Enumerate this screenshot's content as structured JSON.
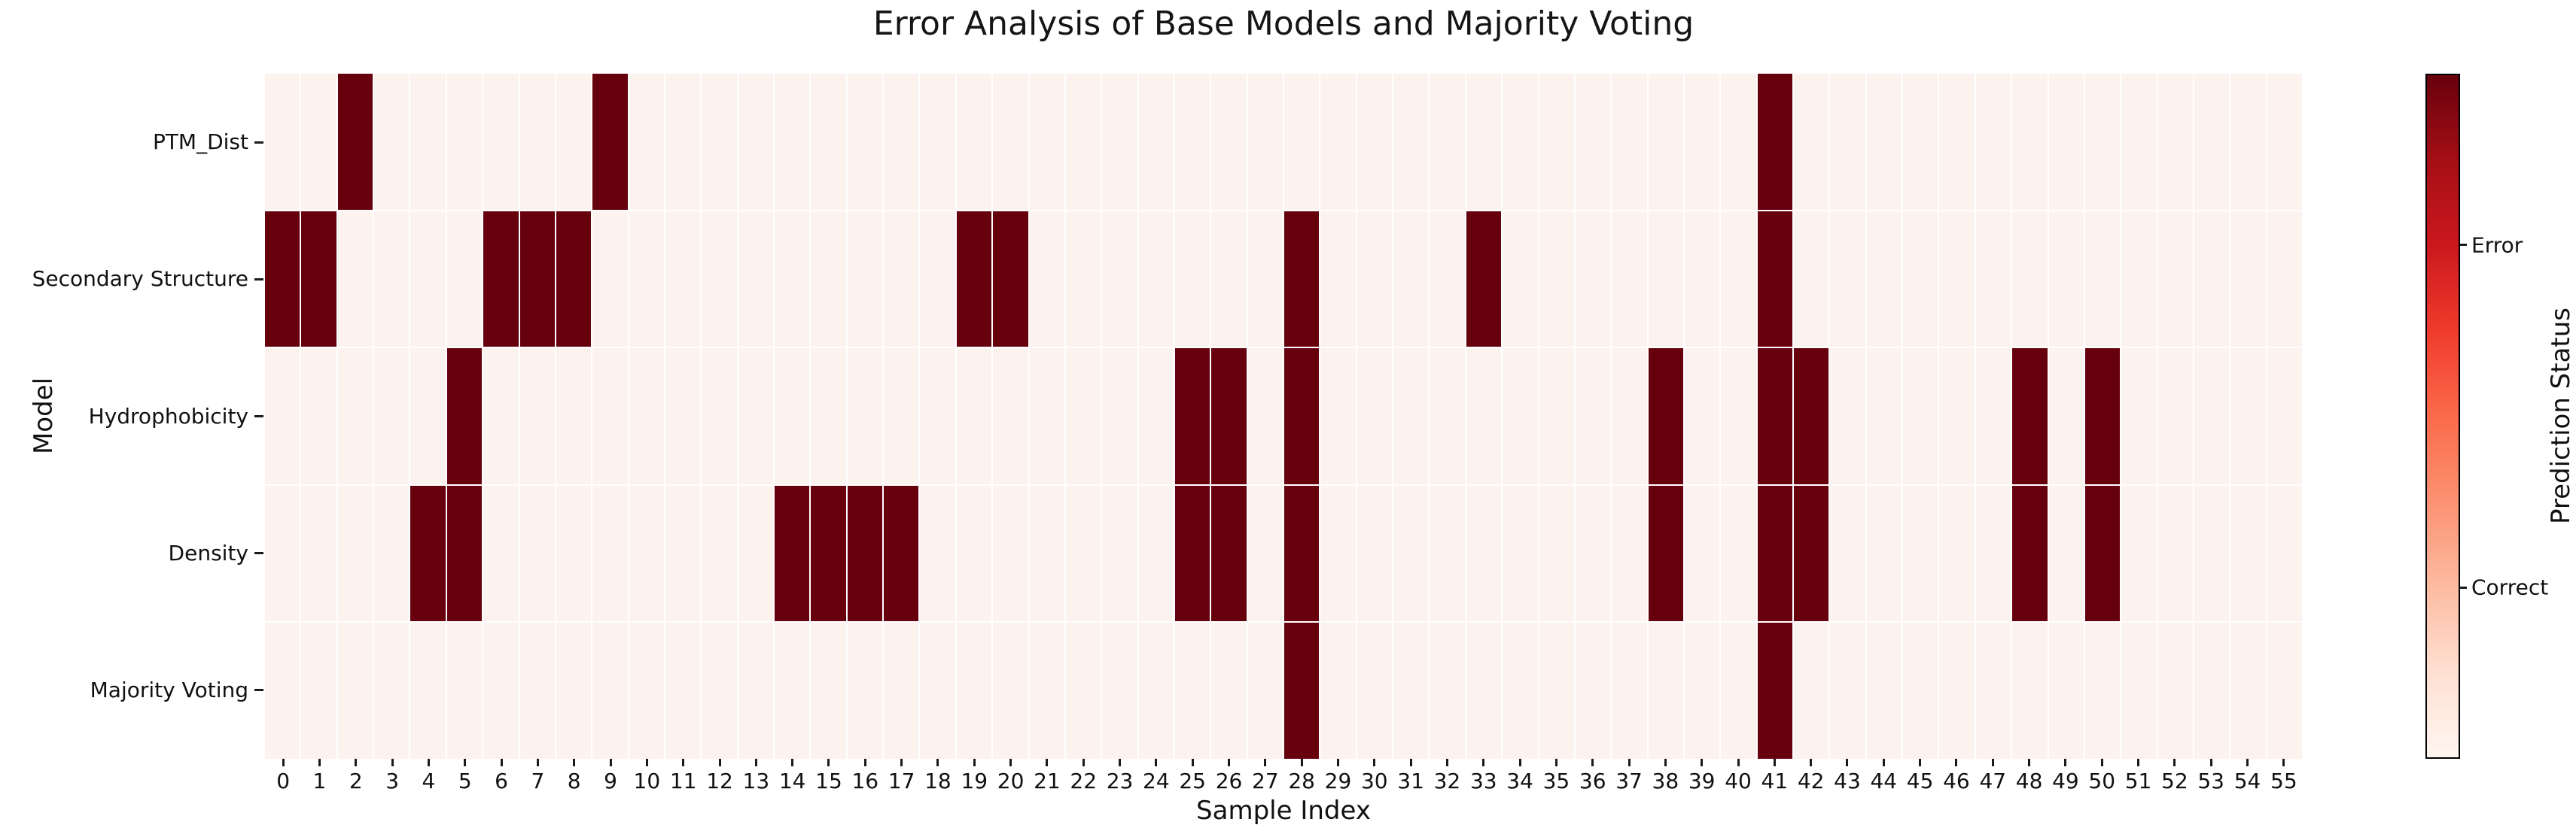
{
  "chart_data": {
    "type": "heatmap",
    "title": "Error Analysis of Base Models and Majority Voting",
    "xlabel": "Sample Index",
    "ylabel": "Model",
    "n_samples": 56,
    "x_ticklabels": [
      "0",
      "1",
      "2",
      "3",
      "4",
      "5",
      "6",
      "7",
      "8",
      "9",
      "10",
      "11",
      "12",
      "13",
      "14",
      "15",
      "16",
      "17",
      "18",
      "19",
      "20",
      "21",
      "22",
      "23",
      "24",
      "25",
      "26",
      "27",
      "28",
      "29",
      "30",
      "31",
      "32",
      "33",
      "34",
      "35",
      "36",
      "37",
      "38",
      "39",
      "40",
      "41",
      "42",
      "43",
      "44",
      "45",
      "46",
      "47",
      "48",
      "49",
      "50",
      "51",
      "52",
      "53",
      "54",
      "55"
    ],
    "series": [
      {
        "name": "PTM_Dist",
        "error_samples": [
          2,
          9,
          41
        ]
      },
      {
        "name": "Secondary Structure",
        "error_samples": [
          0,
          1,
          6,
          7,
          8,
          19,
          20,
          28,
          33,
          41
        ]
      },
      {
        "name": "Hydrophobicity",
        "error_samples": [
          5,
          25,
          26,
          28,
          38,
          41,
          42,
          48,
          50
        ]
      },
      {
        "name": "Density",
        "error_samples": [
          4,
          5,
          14,
          15,
          16,
          17,
          25,
          26,
          28,
          38,
          41,
          42,
          48,
          50
        ]
      },
      {
        "name": "Majority Voting",
        "error_samples": [
          28,
          41
        ]
      }
    ],
    "value_encoding": {
      "error": 1,
      "correct": 0
    },
    "colors": {
      "error_cell": "#67000d",
      "correct_cell": "#fdf3ee",
      "grid_line": "#ffffff",
      "figure_background": "#ffffff"
    },
    "colorbar": {
      "label": "Prediction Status",
      "ticks": [
        {
          "label": "Error",
          "value": 0.75
        },
        {
          "label": "Correct",
          "value": 0.25
        }
      ],
      "gradient_low_to_high": [
        "#fff5f0",
        "#fee0d2",
        "#fcbba1",
        "#fc9272",
        "#fb6a4a",
        "#ef3b2c",
        "#cb181d",
        "#a50f15",
        "#67000d"
      ]
    },
    "layout": {
      "legend": "colorbar-right",
      "grid": "white-cell-separators",
      "axis_range_x": [
        0,
        55
      ]
    }
  }
}
